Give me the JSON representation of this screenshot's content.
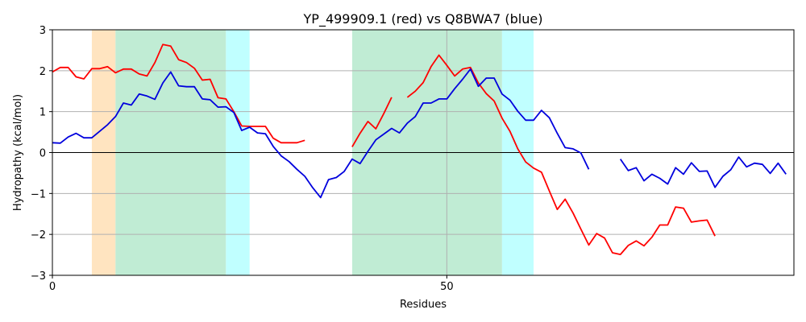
{
  "chart_data": {
    "type": "line",
    "title": "YP_499909.1 (red) vs Q8BWA7 (blue)",
    "xlabel": "Residues",
    "ylabel": "Hydropathy (kcal/mol)",
    "xlim": [
      0,
      94
    ],
    "ylim": [
      -3,
      3
    ],
    "xticks": [
      0,
      50
    ],
    "yticks": [
      -3,
      -2,
      -1,
      0,
      1,
      2,
      3
    ],
    "grid": true,
    "legend": "none",
    "regions": [
      {
        "start": 5,
        "end": 8,
        "color": "#ffe4c0"
      },
      {
        "start": 8,
        "end": 22,
        "color": "#c0ecd4"
      },
      {
        "start": 22,
        "end": 25,
        "color": "#c0ffff"
      },
      {
        "start": 38,
        "end": 57,
        "color": "#c0ecd4"
      },
      {
        "start": 57,
        "end": 61,
        "color": "#c0ffff"
      }
    ],
    "series": [
      {
        "color": "#ff0000",
        "points": [
          [
            0,
            1.97
          ],
          [
            1,
            2.08
          ],
          [
            2,
            2.08
          ],
          [
            3,
            1.85
          ],
          [
            4,
            1.8
          ],
          [
            5,
            2.05
          ],
          [
            6,
            2.05
          ],
          [
            7,
            2.1
          ],
          [
            8,
            1.95
          ],
          [
            9,
            2.04
          ],
          [
            10,
            2.04
          ],
          [
            11,
            1.92
          ],
          [
            12,
            1.87
          ],
          [
            13,
            2.2
          ],
          [
            14,
            2.64
          ],
          [
            15,
            2.6
          ],
          [
            16,
            2.27
          ],
          [
            17,
            2.2
          ],
          [
            18,
            2.06
          ],
          [
            19,
            1.77
          ],
          [
            20,
            1.79
          ],
          [
            21,
            1.34
          ],
          [
            22,
            1.31
          ],
          [
            23,
            1.0
          ],
          [
            24,
            0.65
          ],
          [
            25,
            0.64
          ],
          [
            26,
            0.64
          ],
          [
            27,
            0.64
          ],
          [
            28,
            0.35
          ],
          [
            29,
            0.24
          ],
          [
            30,
            0.24
          ],
          [
            31,
            0.24
          ],
          [
            32,
            0.3
          ],
          null,
          [
            38,
            0.14
          ],
          [
            39,
            0.47
          ],
          [
            40,
            0.76
          ],
          [
            41,
            0.58
          ],
          [
            42,
            0.95
          ],
          [
            43,
            1.35
          ],
          null,
          [
            45,
            1.35
          ],
          [
            46,
            1.5
          ],
          [
            47,
            1.71
          ],
          [
            48,
            2.1
          ],
          [
            49,
            2.38
          ],
          [
            50,
            2.13
          ],
          [
            51,
            1.87
          ],
          [
            52,
            2.04
          ],
          [
            53,
            2.08
          ],
          [
            54,
            1.7
          ],
          [
            55,
            1.44
          ],
          [
            56,
            1.26
          ],
          [
            57,
            0.84
          ],
          [
            58,
            0.52
          ],
          [
            59,
            0.09
          ],
          [
            60,
            -0.23
          ],
          [
            61,
            -0.38
          ],
          [
            62,
            -0.48
          ],
          [
            63,
            -0.94
          ],
          [
            64,
            -1.39
          ],
          [
            65,
            -1.14
          ],
          [
            66,
            -1.48
          ],
          [
            67,
            -1.87
          ],
          [
            68,
            -2.26
          ],
          [
            69,
            -1.98
          ],
          [
            70,
            -2.09
          ],
          [
            71,
            -2.45
          ],
          [
            72,
            -2.49
          ],
          [
            73,
            -2.27
          ],
          [
            74,
            -2.16
          ],
          [
            75,
            -2.28
          ],
          [
            76,
            -2.07
          ],
          [
            77,
            -1.77
          ],
          [
            78,
            -1.77
          ],
          [
            79,
            -1.33
          ],
          [
            80,
            -1.36
          ],
          [
            81,
            -1.7
          ],
          [
            82,
            -1.67
          ],
          [
            83,
            -1.65
          ],
          [
            84,
            -2.04
          ]
        ]
      },
      {
        "color": "#0000dd",
        "points": [
          [
            0,
            0.24
          ],
          [
            1,
            0.23
          ],
          [
            2,
            0.38
          ],
          [
            3,
            0.47
          ],
          [
            4,
            0.36
          ],
          [
            5,
            0.36
          ],
          [
            6,
            0.52
          ],
          [
            7,
            0.68
          ],
          [
            8,
            0.88
          ],
          [
            9,
            1.21
          ],
          [
            10,
            1.16
          ],
          [
            11,
            1.43
          ],
          [
            12,
            1.38
          ],
          [
            13,
            1.3
          ],
          [
            14,
            1.7
          ],
          [
            15,
            1.97
          ],
          [
            16,
            1.63
          ],
          [
            17,
            1.61
          ],
          [
            18,
            1.61
          ],
          [
            19,
            1.31
          ],
          [
            20,
            1.29
          ],
          [
            21,
            1.11
          ],
          [
            22,
            1.12
          ],
          [
            23,
            0.98
          ],
          [
            24,
            0.54
          ],
          [
            25,
            0.62
          ],
          [
            26,
            0.48
          ],
          [
            27,
            0.46
          ],
          [
            28,
            0.15
          ],
          [
            29,
            -0.08
          ],
          [
            30,
            -0.22
          ],
          [
            31,
            -0.41
          ],
          [
            32,
            -0.58
          ],
          [
            33,
            -0.86
          ],
          [
            34,
            -1.1
          ],
          [
            35,
            -0.66
          ],
          [
            36,
            -0.61
          ],
          [
            37,
            -0.46
          ],
          [
            38,
            -0.16
          ],
          [
            39,
            -0.27
          ],
          [
            40,
            0.03
          ],
          [
            41,
            0.31
          ],
          [
            42,
            0.45
          ],
          [
            43,
            0.59
          ],
          [
            44,
            0.48
          ],
          [
            45,
            0.72
          ],
          [
            46,
            0.88
          ],
          [
            47,
            1.21
          ],
          [
            48,
            1.21
          ],
          [
            49,
            1.31
          ],
          [
            50,
            1.31
          ],
          [
            51,
            1.56
          ],
          [
            52,
            1.79
          ],
          [
            53,
            2.04
          ],
          [
            54,
            1.62
          ],
          [
            55,
            1.82
          ],
          [
            56,
            1.82
          ],
          [
            57,
            1.43
          ],
          [
            58,
            1.28
          ],
          [
            59,
            1.01
          ],
          [
            60,
            0.79
          ],
          [
            61,
            0.79
          ],
          [
            62,
            1.03
          ],
          [
            63,
            0.85
          ],
          [
            64,
            0.47
          ],
          [
            65,
            0.12
          ],
          [
            66,
            0.09
          ],
          [
            67,
            -0.01
          ],
          [
            68,
            -0.41
          ],
          null,
          [
            72,
            -0.16
          ],
          [
            73,
            -0.44
          ],
          [
            74,
            -0.37
          ],
          [
            75,
            -0.69
          ],
          [
            76,
            -0.53
          ],
          [
            77,
            -0.63
          ],
          [
            78,
            -0.77
          ],
          [
            79,
            -0.37
          ],
          [
            80,
            -0.53
          ],
          [
            81,
            -0.25
          ],
          [
            82,
            -0.46
          ],
          [
            83,
            -0.45
          ],
          [
            84,
            -0.85
          ],
          [
            85,
            -0.58
          ],
          [
            86,
            -0.42
          ],
          [
            87,
            -0.11
          ],
          [
            88,
            -0.35
          ],
          [
            89,
            -0.26
          ],
          [
            90,
            -0.29
          ],
          [
            91,
            -0.51
          ],
          [
            92,
            -0.26
          ],
          [
            93,
            -0.53
          ]
        ]
      }
    ]
  }
}
